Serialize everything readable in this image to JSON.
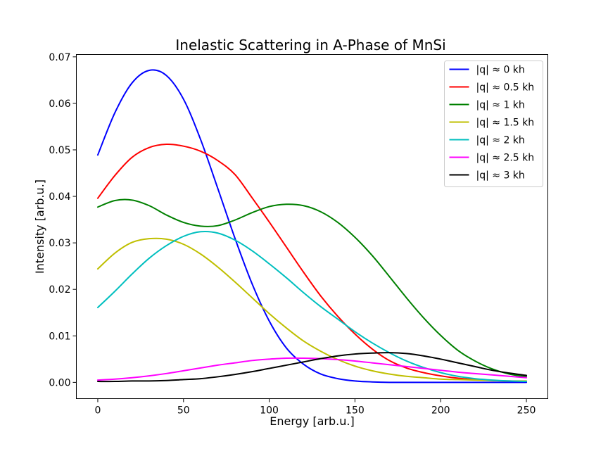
{
  "chart_data": {
    "type": "line",
    "title": "Inelastic Scattering in A-Phase of MnSi",
    "xlabel": "Energy [arb.u.]",
    "ylabel": "Intensity [arb.u.]",
    "xlim": [
      -12.5,
      262.5
    ],
    "ylim": [
      -0.0035,
      0.0705
    ],
    "xticks": [
      0,
      50,
      100,
      150,
      200,
      250
    ],
    "xtick_labels": [
      "0",
      "50",
      "100",
      "150",
      "200",
      "250"
    ],
    "yticks": [
      0.0,
      0.01,
      0.02,
      0.03,
      0.04,
      0.05,
      0.06,
      0.07
    ],
    "ytick_labels": [
      "0.00",
      "0.01",
      "0.02",
      "0.03",
      "0.04",
      "0.05",
      "0.06",
      "0.07"
    ],
    "grid": false,
    "legend_position": "top-right",
    "x": [
      0,
      10,
      20,
      30,
      40,
      50,
      60,
      70,
      80,
      90,
      100,
      110,
      120,
      130,
      140,
      150,
      160,
      170,
      180,
      190,
      200,
      210,
      220,
      230,
      240,
      250
    ],
    "series": [
      {
        "name": "|q| ≈ 0 kh",
        "color": "#0000ff",
        "values": [
          0.0489,
          0.058,
          0.0644,
          0.0671,
          0.066,
          0.0609,
          0.0522,
          0.0417,
          0.031,
          0.0212,
          0.0132,
          0.0074,
          0.0039,
          0.0018,
          0.0008,
          0.0003,
          0.0001,
          0.0,
          0.0,
          0.0,
          0.0,
          0.0,
          0.0,
          0.0,
          0.0,
          0.0
        ]
      },
      {
        "name": "|q| ≈ 0.5 kh",
        "color": "#ff0000",
        "values": [
          0.0396,
          0.0445,
          0.0484,
          0.0505,
          0.0512,
          0.0508,
          0.0497,
          0.0477,
          0.0447,
          0.0397,
          0.0345,
          0.0291,
          0.0237,
          0.0186,
          0.0142,
          0.0104,
          0.0072,
          0.0047,
          0.0031,
          0.0021,
          0.0014,
          0.0009,
          0.0006,
          0.0004,
          0.0003,
          0.0002
        ]
      },
      {
        "name": "|q| ≈ 1 kh",
        "color": "#008000",
        "values": [
          0.0377,
          0.0391,
          0.0392,
          0.038,
          0.036,
          0.0344,
          0.0336,
          0.0337,
          0.0349,
          0.0365,
          0.0378,
          0.0383,
          0.038,
          0.0367,
          0.0344,
          0.0312,
          0.0273,
          0.0228,
          0.0182,
          0.0139,
          0.0101,
          0.0069,
          0.0046,
          0.0029,
          0.0018,
          0.0012
        ]
      },
      {
        "name": "|q| ≈ 1.5 kh",
        "color": "#bfbf00",
        "values": [
          0.0244,
          0.0278,
          0.0301,
          0.0309,
          0.0308,
          0.0297,
          0.0276,
          0.0248,
          0.0216,
          0.0182,
          0.0148,
          0.0117,
          0.0089,
          0.0067,
          0.0049,
          0.0035,
          0.0025,
          0.0018,
          0.0013,
          0.001,
          0.0007,
          0.0006,
          0.0005,
          0.0004,
          0.0003,
          0.0003
        ]
      },
      {
        "name": "|q| ≈ 2 kh",
        "color": "#00bfbf",
        "values": [
          0.0161,
          0.0196,
          0.0233,
          0.0267,
          0.0294,
          0.0314,
          0.0324,
          0.0321,
          0.0306,
          0.0283,
          0.0255,
          0.0225,
          0.0193,
          0.0163,
          0.0136,
          0.0109,
          0.0085,
          0.0064,
          0.0046,
          0.0032,
          0.0021,
          0.0013,
          0.0008,
          0.0005,
          0.0003,
          0.0002
        ]
      },
      {
        "name": "|q| ≈ 2.5 kh",
        "color": "#ff00ff",
        "values": [
          0.0005,
          0.0007,
          0.001,
          0.0014,
          0.0019,
          0.0025,
          0.0031,
          0.0037,
          0.0042,
          0.0047,
          0.005,
          0.0052,
          0.0052,
          0.0051,
          0.0049,
          0.0046,
          0.0042,
          0.0038,
          0.0034,
          0.003,
          0.0026,
          0.0022,
          0.0019,
          0.0016,
          0.0013,
          0.001
        ]
      },
      {
        "name": "|q| ≈ 3 kh",
        "color": "#000000",
        "values": [
          0.0002,
          0.0002,
          0.0003,
          0.0003,
          0.0004,
          0.0006,
          0.0008,
          0.0012,
          0.0017,
          0.0023,
          0.003,
          0.0037,
          0.0044,
          0.0051,
          0.0057,
          0.0061,
          0.0063,
          0.0064,
          0.0062,
          0.0057,
          0.005,
          0.0042,
          0.0034,
          0.0026,
          0.002,
          0.0015
        ]
      }
    ]
  }
}
